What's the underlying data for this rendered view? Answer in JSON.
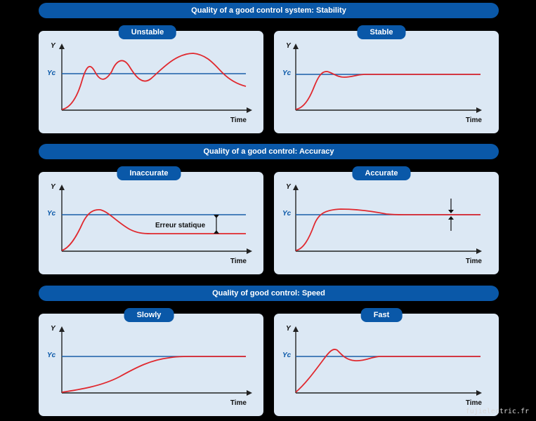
{
  "sections": [
    {
      "title": "Quality of a good control system: Stability",
      "panels": [
        {
          "label": "Unstable",
          "curve": "unstable"
        },
        {
          "label": "Stable",
          "curve": "stable"
        }
      ]
    },
    {
      "title": "Quality of a good control: Accuracy",
      "panels": [
        {
          "label": "Inaccurate",
          "curve": "inaccurate",
          "annotation": "Erreur statique"
        },
        {
          "label": "Accurate",
          "curve": "accurate"
        }
      ]
    },
    {
      "title": "Quality of good control: Speed",
      "panels": [
        {
          "label": "Slowly",
          "curve": "slow"
        },
        {
          "label": "Fast",
          "curve": "fast"
        }
      ]
    }
  ],
  "axes": {
    "y_label": "Y",
    "setpoint_label": "Yc",
    "x_label": "Time"
  },
  "colors": {
    "banner": "#0a58a8",
    "panel": "#dce8f4",
    "setpoint_line": "#1a5ea8",
    "response_curve": "#e0282e"
  },
  "watermark": "fujielectric.fr"
}
